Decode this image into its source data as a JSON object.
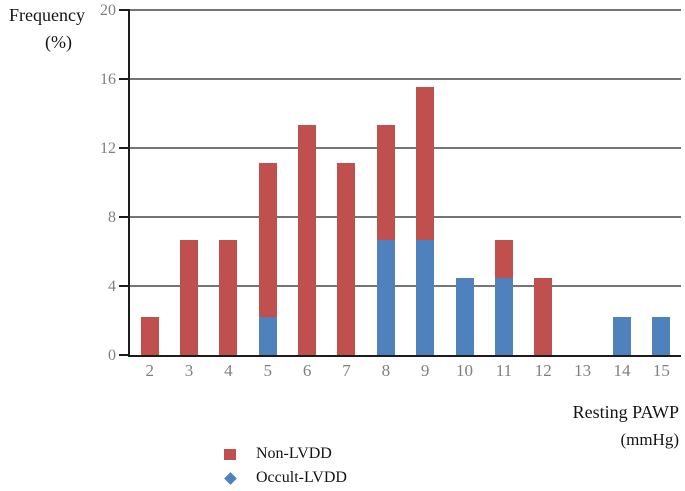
{
  "figure": {
    "y_axis_title_line1": "Frequency",
    "y_axis_title_line2": "(%)",
    "x_axis_title_line1": "Resting PAWP",
    "x_axis_title_line2": "(mmHg)"
  },
  "legend": {
    "items": [
      {
        "label": "Non-LVDD",
        "marker": "square",
        "color": "#C0504D"
      },
      {
        "label": "Occult-LVDD",
        "marker": "diamond",
        "color": "#4F81BD"
      }
    ]
  },
  "colors": {
    "non_lvdd_red": "#C0504D",
    "occult_lvdd_blue": "#4F81BD",
    "gridline_gray": "#757575",
    "tick_label_gray": "#7F7F7F",
    "axis_black": "#1C1C1C"
  },
  "chart_data": {
    "type": "bar",
    "stacked": true,
    "title": "",
    "xlabel": "Resting PAWP (mmHg)",
    "ylabel": "Frequency (%)",
    "categories": [
      "2",
      "3",
      "4",
      "5",
      "6",
      "7",
      "8",
      "9",
      "10",
      "11",
      "12",
      "13",
      "14",
      "15"
    ],
    "series": [
      {
        "name": "Occult-LVDD",
        "color": "#4F81BD",
        "values": [
          0,
          0,
          0,
          2.22,
          0,
          0,
          6.67,
          6.67,
          4.44,
          4.44,
          0,
          0,
          2.22,
          2.22
        ]
      },
      {
        "name": "Non-LVDD",
        "color": "#C0504D",
        "values": [
          2.22,
          6.67,
          6.67,
          8.89,
          13.33,
          11.11,
          6.67,
          8.89,
          0,
          2.22,
          4.44,
          0,
          0,
          0
        ]
      }
    ],
    "stack_totals": [
      2.22,
      6.67,
      6.67,
      11.11,
      13.33,
      11.11,
      13.33,
      15.56,
      4.44,
      6.67,
      4.44,
      0,
      2.22,
      2.22
    ],
    "ylim": [
      0,
      20
    ],
    "yticks": [
      0,
      4,
      8,
      12,
      16,
      20
    ],
    "grid": true,
    "legend_position": "bottom"
  }
}
